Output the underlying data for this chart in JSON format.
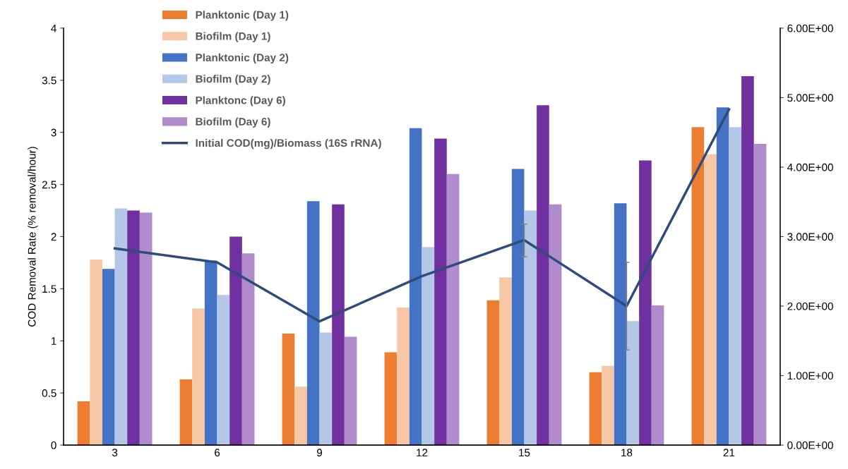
{
  "chart_data": {
    "type": "bar",
    "ylabel": "COD Removal Rate (% removal/hour)",
    "categories": [
      "3",
      "6",
      "9",
      "12",
      "15",
      "18",
      "21"
    ],
    "series": [
      {
        "name": "Planktonic (Day 1)",
        "color": "#ed7d31",
        "values": [
          0.42,
          0.63,
          1.07,
          0.89,
          1.39,
          0.7,
          3.05
        ]
      },
      {
        "name": "Biofilm (Day 1)",
        "color": "#f8c8a6",
        "values": [
          1.78,
          1.31,
          0.56,
          1.32,
          1.61,
          0.76,
          2.79
        ]
      },
      {
        "name": "Planktonic (Day 2)",
        "color": "#4472c4",
        "values": [
          1.69,
          1.77,
          2.34,
          3.04,
          2.65,
          2.32,
          3.24
        ]
      },
      {
        "name": "Biofilm (Day 2)",
        "color": "#b4c7e7",
        "values": [
          2.27,
          1.44,
          1.08,
          1.9,
          2.25,
          1.19,
          3.05
        ]
      },
      {
        "name": "Planktonc (Day 6)",
        "color": "#7030a0",
        "values": [
          2.25,
          2.0,
          2.31,
          2.94,
          3.26,
          2.73,
          3.54
        ]
      },
      {
        "name": "Biofilm (Day 6)",
        "color": "#b08cce",
        "values": [
          2.23,
          1.84,
          1.04,
          2.6,
          2.31,
          1.34,
          2.89
        ]
      },
      {
        "name": "Initial COD(mg)/Biomass (16S rRNA)",
        "type": "line",
        "axis": "y2",
        "color": "#2f4b7c",
        "values": [
          2.83,
          2.63,
          1.78,
          2.43,
          2.95,
          2.0,
          4.83
        ],
        "errors": [
          null,
          null,
          null,
          null,
          [
            2.71,
            3.18
          ],
          [
            1.37,
            2.63
          ],
          null
        ]
      }
    ],
    "ylim": [
      0,
      4
    ],
    "yticks": [
      0,
      0.5,
      1,
      1.5,
      2,
      2.5,
      3,
      3.5,
      4
    ],
    "y2lim": [
      0,
      6
    ],
    "y2ticks": [
      {
        "value": 0,
        "label": "0.00E+00"
      },
      {
        "value": 1,
        "label": "1.00E+00"
      },
      {
        "value": 2,
        "label": "2.00E+00"
      },
      {
        "value": 3,
        "label": "3.00E+00"
      },
      {
        "value": 4,
        "label": "4.00E+00"
      },
      {
        "value": 5,
        "label": "5.00E+00"
      },
      {
        "value": 6,
        "label": "6.00E+00"
      }
    ],
    "legend": "top left",
    "grid": false
  }
}
